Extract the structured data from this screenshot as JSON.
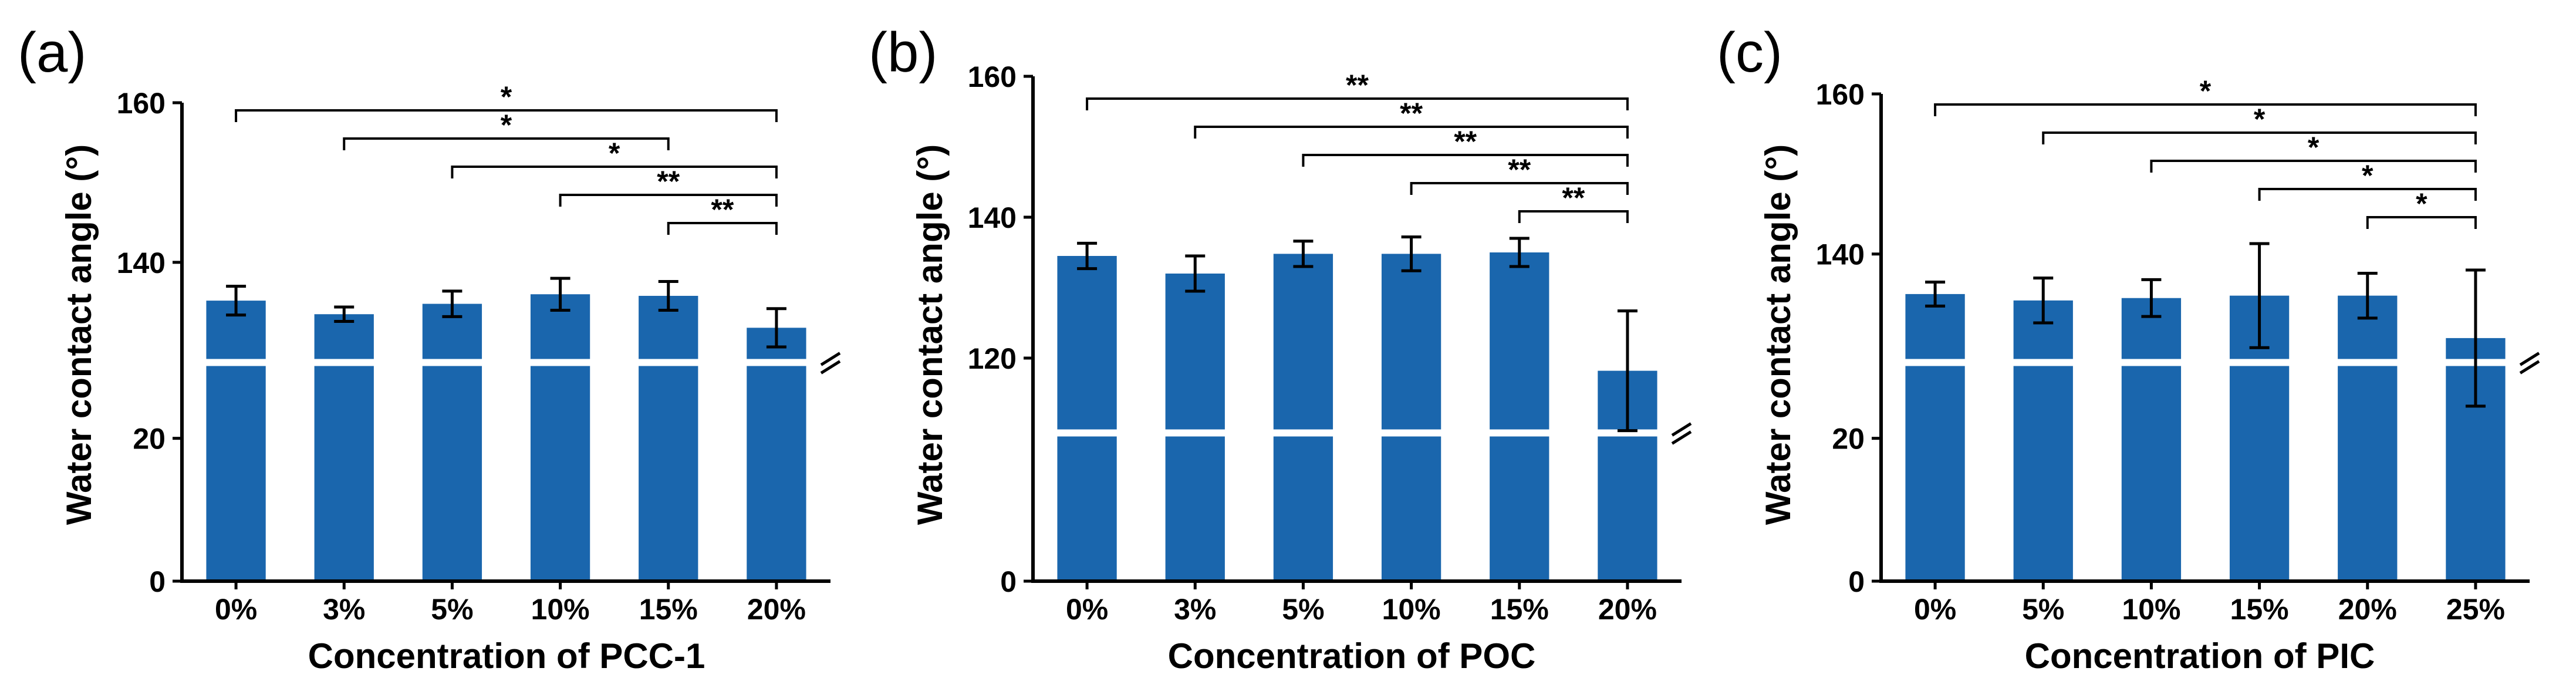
{
  "figure": {
    "bar_color": "#1a66ad",
    "axis_color": "#000000",
    "break_color": "#ffffff"
  },
  "chart_data": [
    {
      "type": "bar",
      "panel_label": "(a)",
      "xlabel": "Concentration of PCC-1",
      "ylabel": "Water contact angle (°)",
      "categories": [
        "0%",
        "3%",
        "5%",
        "10%",
        "15%",
        "20%"
      ],
      "values": [
        135.2,
        133.5,
        134.8,
        136.0,
        135.8,
        131.8
      ],
      "errors": [
        1.8,
        0.9,
        1.6,
        2.0,
        1.8,
        2.4
      ],
      "axis_breaks": [
        {
          "lower_range": [
            0,
            30
          ],
          "upper_range": [
            128,
            160
          ],
          "lower_ticks": [
            0,
            20
          ],
          "upper_ticks": [
            140,
            160
          ]
        }
      ],
      "significance": [
        {
          "from": "0%",
          "to": "20%",
          "label": "*"
        },
        {
          "from": "3%",
          "to": "15%",
          "label": "*"
        },
        {
          "from": "5%",
          "to": "20%",
          "label": "*"
        },
        {
          "from": "10%",
          "to": "20%",
          "label": "**"
        },
        {
          "from": "15%",
          "to": "20%",
          "label": "**"
        }
      ]
    },
    {
      "type": "bar",
      "panel_label": "(b)",
      "xlabel": "Concentration of POC",
      "ylabel": "Water contact angle (°)",
      "categories": [
        "0%",
        "3%",
        "5%",
        "10%",
        "15%",
        "20%"
      ],
      "values": [
        134.5,
        132.0,
        134.8,
        134.8,
        135.0,
        118.2
      ],
      "errors": [
        1.8,
        2.5,
        1.8,
        2.4,
        2.0,
        8.5
      ],
      "axis_breaks": [
        {
          "lower_range": [
            0,
            20
          ],
          "upper_range": [
            110,
            160
          ],
          "lower_ticks": [
            0
          ],
          "upper_ticks": [
            120,
            140,
            160
          ]
        }
      ],
      "significance": [
        {
          "from": "0%",
          "to": "20%",
          "label": "**"
        },
        {
          "from": "3%",
          "to": "20%",
          "label": "**"
        },
        {
          "from": "5%",
          "to": "20%",
          "label": "**"
        },
        {
          "from": "10%",
          "to": "20%",
          "label": "**"
        },
        {
          "from": "15%",
          "to": "20%",
          "label": "**"
        }
      ]
    },
    {
      "type": "bar",
      "panel_label": "(c)",
      "xlabel": "Concentration of PIC",
      "ylabel": "Water contact angle (°)",
      "categories": [
        "0%",
        "5%",
        "10%",
        "15%",
        "20%",
        "25%"
      ],
      "values": [
        135.0,
        134.2,
        134.5,
        134.8,
        134.8,
        129.5
      ],
      "errors": [
        1.5,
        2.8,
        2.3,
        6.5,
        2.8,
        8.5
      ],
      "axis_breaks": [
        {
          "lower_range": [
            0,
            30
          ],
          "upper_range": [
            127,
            160
          ],
          "lower_ticks": [
            0,
            20
          ],
          "upper_ticks": [
            140,
            160
          ]
        }
      ],
      "significance": [
        {
          "from": "0%",
          "to": "25%",
          "label": "*"
        },
        {
          "from": "5%",
          "to": "25%",
          "label": "*"
        },
        {
          "from": "10%",
          "to": "25%",
          "label": "*"
        },
        {
          "from": "15%",
          "to": "25%",
          "label": "*"
        },
        {
          "from": "20%",
          "to": "25%",
          "label": "*"
        }
      ]
    }
  ]
}
